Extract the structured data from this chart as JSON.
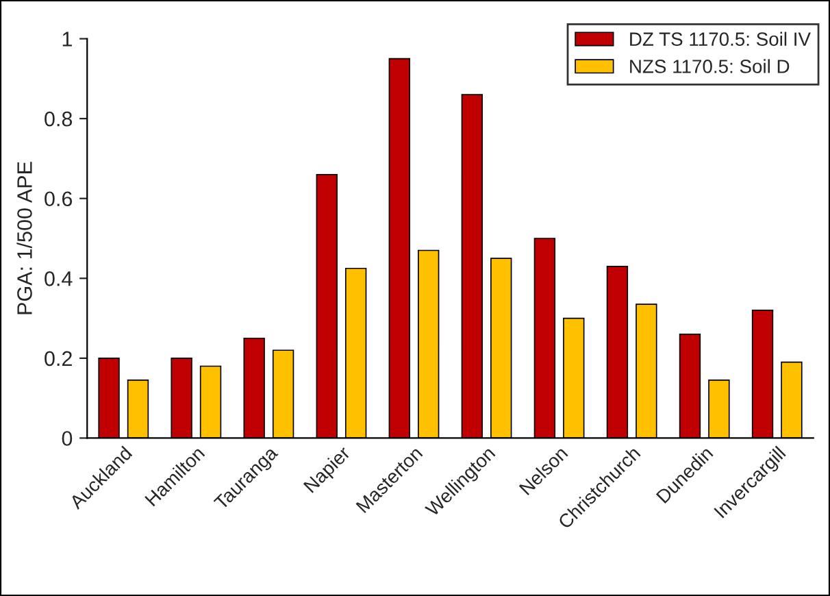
{
  "chart_data": {
    "type": "bar",
    "ylabel": "PGA: 1/500 APE",
    "categories": [
      "Auckland",
      "Hamilton",
      "Tauranga",
      "Napier",
      "Masterton",
      "Wellington",
      "Nelson",
      "Christchurch",
      "Dunedin",
      "Invercargill"
    ],
    "series": [
      {
        "name": "DZ TS 1170.5: Soil IV",
        "color": "#c00000",
        "values": [
          0.2,
          0.2,
          0.25,
          0.66,
          0.95,
          0.86,
          0.5,
          0.43,
          0.26,
          0.32
        ]
      },
      {
        "name": "NZS 1170.5: Soil D",
        "color": "#ffc000",
        "values": [
          0.145,
          0.18,
          0.22,
          0.425,
          0.47,
          0.45,
          0.3,
          0.335,
          0.145,
          0.19
        ]
      }
    ],
    "ylim": [
      0,
      1
    ],
    "yticks": [
      0,
      0.2,
      0.4,
      0.6,
      0.8,
      1
    ],
    "grid": false,
    "legend": "top right"
  }
}
